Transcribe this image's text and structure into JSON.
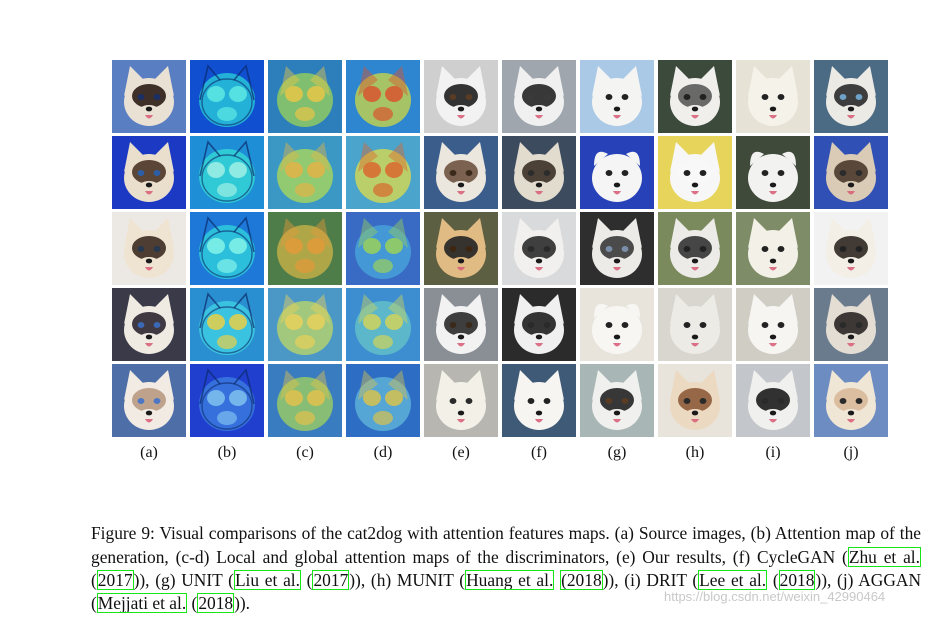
{
  "figure": {
    "column_labels": [
      "(a)",
      "(b)",
      "(c)",
      "(d)",
      "(e)",
      "(f)",
      "(g)",
      "(h)",
      "(i)",
      "(j)"
    ],
    "rows": [
      [
        {
          "kind": "photo",
          "bg": "#5a7ec2",
          "fur": "#e9e1d4",
          "mask": "#2b1c16",
          "eye": "#1a2f66",
          "ears": "pointed"
        },
        {
          "kind": "attn",
          "palette": [
            "#0f4fd0",
            "#29c9d8",
            "#5ee9e3"
          ]
        },
        {
          "kind": "heat",
          "palette": [
            "#2d7fbc",
            "#95cf5d",
            "#e8c548"
          ]
        },
        {
          "kind": "heat",
          "palette": [
            "#2f86d0",
            "#c4d34a",
            "#d8552f"
          ]
        },
        {
          "kind": "photo",
          "bg": "#cfcfcf",
          "fur": "#f2f2f2",
          "mask": "#1e1e1e",
          "eye": "#5a3c24",
          "ears": "pointed"
        },
        {
          "kind": "photo",
          "bg": "#9fa6ae",
          "fur": "#f0f0f0",
          "mask": "#232323",
          "eye": "#3a3a3a",
          "ears": "pointed"
        },
        {
          "kind": "photo",
          "bg": "#a9c9e6",
          "fur": "#f4f4f2",
          "mask": "#f4f4f2",
          "eye": "#222222",
          "ears": "pointed"
        },
        {
          "kind": "photo",
          "bg": "#3c4a3c",
          "fur": "#f0efec",
          "mask": "#5a5a5a",
          "eye": "#222222",
          "ears": "pointed"
        },
        {
          "kind": "photo",
          "bg": "#e7e2d6",
          "fur": "#f5f2ea",
          "mask": "#f5f2ea",
          "eye": "#222222",
          "ears": "pointed"
        },
        {
          "kind": "photo",
          "bg": "#4b6a84",
          "fur": "#ebeae5",
          "mask": "#2a2a2a",
          "eye": "#6fa2c8",
          "ears": "pointed"
        }
      ],
      [
        {
          "kind": "photo",
          "bg": "#1c39c4",
          "fur": "#eadfcc",
          "mask": "#4a3426",
          "eye": "#2d5ea8",
          "ears": "pointed"
        },
        {
          "kind": "attn",
          "palette": [
            "#1e8fd6",
            "#35d8d6",
            "#9ff0e4"
          ]
        },
        {
          "kind": "heat",
          "palette": [
            "#3b98c4",
            "#a8d75c",
            "#e3b447"
          ]
        },
        {
          "kind": "heat",
          "palette": [
            "#4aa4cc",
            "#d6d850",
            "#d9692f"
          ]
        },
        {
          "kind": "photo",
          "bg": "#3a5d8c",
          "fur": "#ece7de",
          "mask": "#6f5240",
          "eye": "#3a2a1a",
          "ears": "pointed"
        },
        {
          "kind": "photo",
          "bg": "#3d4b5f",
          "fur": "#e2dccf",
          "mask": "#3b3026",
          "eye": "#2c2c2c",
          "ears": "pointed"
        },
        {
          "kind": "photo",
          "bg": "#2742b9",
          "fur": "#f5f5f5",
          "mask": "#f5f5f5",
          "eye": "#222222",
          "ears": "round"
        },
        {
          "kind": "photo",
          "bg": "#e6d55a",
          "fur": "#f7f7f7",
          "mask": "#f7f7f7",
          "eye": "#222222",
          "ears": "pointed"
        },
        {
          "kind": "photo",
          "bg": "#3f4a3a",
          "fur": "#f2f2f0",
          "mask": "#f2f2f0",
          "eye": "#222222",
          "ears": "round"
        },
        {
          "kind": "photo",
          "bg": "#3050b5",
          "fur": "#d9cbb5",
          "mask": "#4a3a2c",
          "eye": "#2b2b2b",
          "ears": "pointed"
        }
      ],
      [
        {
          "kind": "photo",
          "bg": "#ece9e5",
          "fur": "#efe4d2",
          "mask": "#3b2a20",
          "eye": "#26374f",
          "ears": "pointed"
        },
        {
          "kind": "attn",
          "palette": [
            "#1d78d8",
            "#2fd1dd",
            "#85f2e8"
          ]
        },
        {
          "kind": "heat",
          "palette": [
            "#4f7d4a",
            "#c7b047",
            "#e39a3a"
          ]
        },
        {
          "kind": "heat",
          "palette": [
            "#3a6bc4",
            "#46a4d9",
            "#9ad05a"
          ]
        },
        {
          "kind": "photo",
          "bg": "#5c5f41",
          "fur": "#e0bb83",
          "mask": "#232323",
          "eye": "#3d2612",
          "ears": "pointed"
        },
        {
          "kind": "photo",
          "bg": "#d9dadb",
          "fur": "#f1f0ee",
          "mask": "#2b2b2b",
          "eye": "#2a2a2a",
          "ears": "pointed"
        },
        {
          "kind": "photo",
          "bg": "#2e2e2e",
          "fur": "#ecebe8",
          "mask": "#3a3a3a",
          "eye": "#7a8ea8",
          "ears": "pointed"
        },
        {
          "kind": "photo",
          "bg": "#7a8a5c",
          "fur": "#ecebe8",
          "mask": "#343434",
          "eye": "#222222",
          "ears": "pointed"
        },
        {
          "kind": "photo",
          "bg": "#7e8d67",
          "fur": "#f3f0e8",
          "mask": "#f3f0e8",
          "eye": "#222222",
          "ears": "pointed"
        },
        {
          "kind": "photo",
          "bg": "#f2f2f2",
          "fur": "#f3efe6",
          "mask": "#2f2620",
          "eye": "#222222",
          "ears": "pointed"
        }
      ],
      [
        {
          "kind": "photo",
          "bg": "#3a3a48",
          "fur": "#efeae2",
          "mask": "#2e2630",
          "eye": "#3b69b8",
          "ears": "pointed"
        },
        {
          "kind": "attn",
          "palette": [
            "#2a8fd0",
            "#3fd0e3",
            "#e8d047"
          ]
        },
        {
          "kind": "heat",
          "palette": [
            "#4b98c6",
            "#b8d56a",
            "#e8d05a"
          ]
        },
        {
          "kind": "heat",
          "palette": [
            "#3d8ed0",
            "#64c2c8",
            "#cfd35a"
          ]
        },
        {
          "kind": "photo",
          "bg": "#8a8f95",
          "fur": "#f2f2f2",
          "mask": "#2a2a2a",
          "eye": "#3a2a1a",
          "ears": "pointed"
        },
        {
          "kind": "photo",
          "bg": "#2b2b2b",
          "fur": "#f0f0f0",
          "mask": "#1f1f1f",
          "eye": "#2a2a2a",
          "ears": "pointed"
        },
        {
          "kind": "photo",
          "bg": "#e8e4dc",
          "fur": "#f7f6f3",
          "mask": "#f7f6f3",
          "eye": "#222222",
          "ears": "round"
        },
        {
          "kind": "photo",
          "bg": "#d8d6cf",
          "fur": "#ecebe6",
          "mask": "#ecebe6",
          "eye": "#222222",
          "ears": "pointed"
        },
        {
          "kind": "photo",
          "bg": "#d0cdc4",
          "fur": "#f6f5f2",
          "mask": "#f6f5f2",
          "eye": "#222222",
          "ears": "pointed"
        },
        {
          "kind": "photo",
          "bg": "#6b7b8e",
          "fur": "#e3ddd3",
          "mask": "#2a2624",
          "eye": "#2a2a2a",
          "ears": "pointed"
        }
      ],
      [
        {
          "kind": "photo",
          "bg": "#4e6ea8",
          "fur": "#f1ebe3",
          "mask": "#b89a82",
          "eye": "#4d77c4",
          "ears": "pointed"
        },
        {
          "kind": "attn",
          "palette": [
            "#203fcf",
            "#3b7de0",
            "#7fc1ef"
          ]
        },
        {
          "kind": "heat",
          "palette": [
            "#3a7cc0",
            "#9bcd60",
            "#e3c24e"
          ]
        },
        {
          "kind": "heat",
          "palette": [
            "#2d6ec4",
            "#5fb4d9",
            "#d8c24e"
          ]
        },
        {
          "kind": "photo",
          "bg": "#b7b6b1",
          "fur": "#f3f0e8",
          "mask": "#f3f0e8",
          "eye": "#2a2a2a",
          "ears": "pointed"
        },
        {
          "kind": "photo",
          "bg": "#3e5a77",
          "fur": "#f6f5f2",
          "mask": "#f6f5f2",
          "eye": "#222222",
          "ears": "pointed"
        },
        {
          "kind": "photo",
          "bg": "#a8b6b6",
          "fur": "#f0f0ee",
          "mask": "#222222",
          "eye": "#5a3c24",
          "ears": "pointed"
        },
        {
          "kind": "photo",
          "bg": "#e8e4dc",
          "fur": "#ecd9c2",
          "mask": "#8e5b3a",
          "eye": "#2a2a2a",
          "ears": "pointed"
        },
        {
          "kind": "photo",
          "bg": "#c3c6ca",
          "fur": "#f0f0ee",
          "mask": "#1c1c1c",
          "eye": "#2a2a2a",
          "ears": "pointed"
        },
        {
          "kind": "photo",
          "bg": "#6d8cc2",
          "fur": "#f0e6d6",
          "mask": "#d8b89a",
          "eye": "#2a2a2a",
          "ears": "pointed"
        }
      ]
    ]
  },
  "caption": {
    "p1": "Figure 9: Visual comparisons of the cat2dog with attention features maps. (a) Source images, (b) Attention map of the generation, (c-d) Local and global attention maps of the discriminators, (e) Our results, (f) CycleGAN (",
    "c1a": "Zhu et al.",
    "s1": " (",
    "c1b": "2017",
    "p2": ")), (g) UNIT (",
    "c2a": "Liu et al.",
    "s2": " (",
    "c2b": "2017",
    "p3": ")), (h) MUNIT (",
    "c3a": "Huang et al.",
    "s3": " ",
    "c3b": "(2018",
    "p4": ")), (i) DRIT (",
    "c4a": "Lee et al.",
    "s4": " (",
    "c4b": "2018",
    "p5": ")), (j) AGGAN (",
    "c5a": "Mejjati et al.",
    "s5": " (",
    "c5b": "2018",
    "p6": "))."
  },
  "watermark": "https://blog.csdn.net/weixin_42990464"
}
